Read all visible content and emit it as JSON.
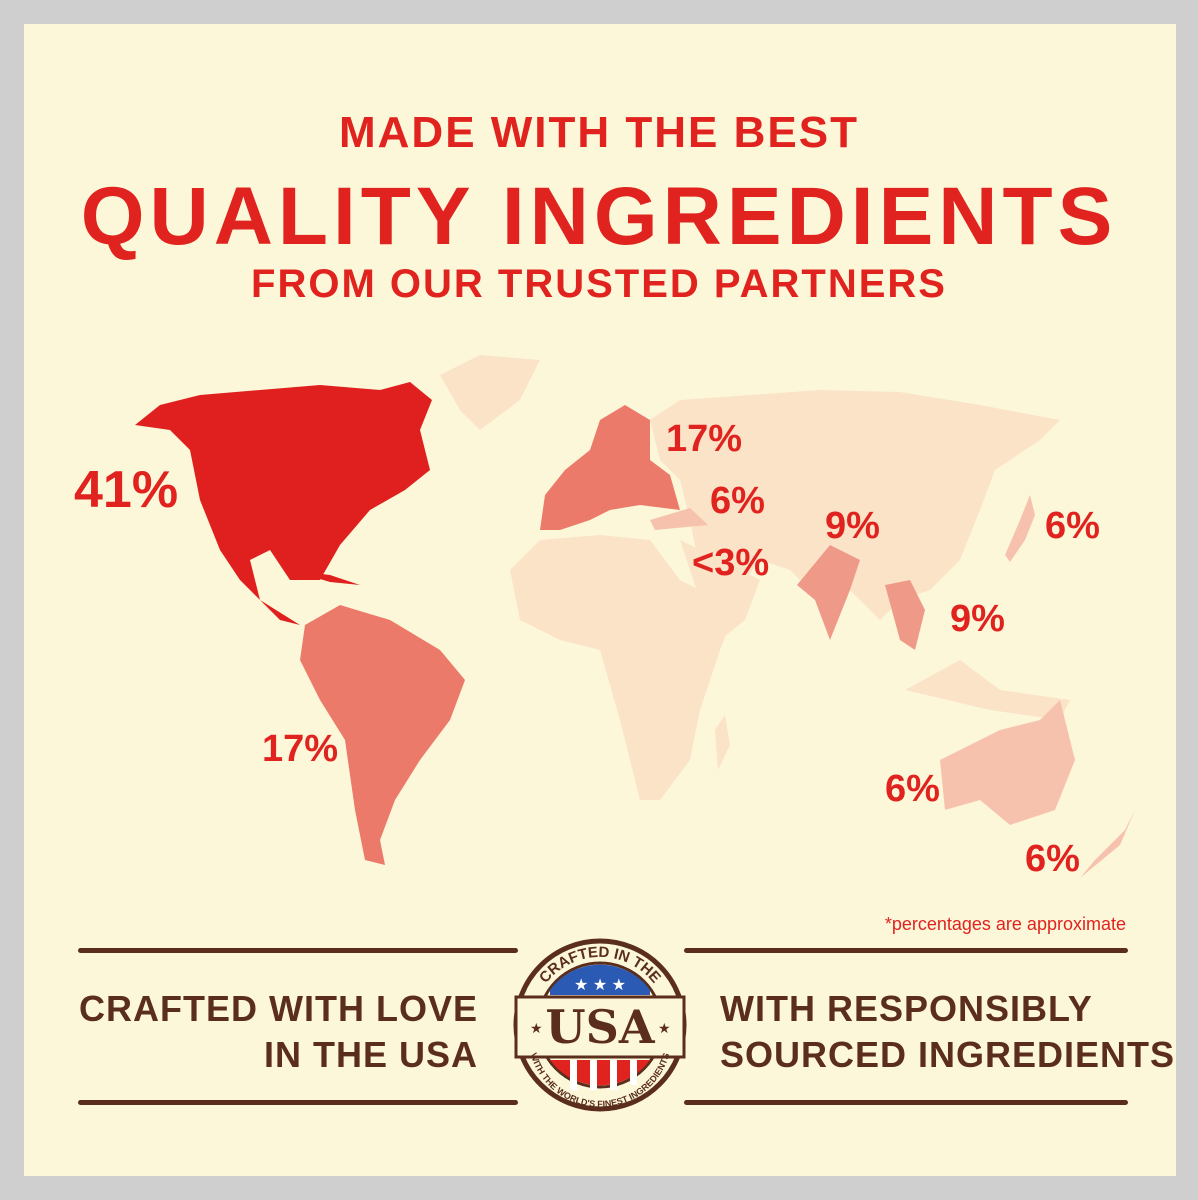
{
  "header": {
    "line1": "MADE WITH THE BEST",
    "line2": "QUALITY INGREDIENTS",
    "line3": "FROM OUR TRUSTED PARTNERS"
  },
  "regions": {
    "north_america": "41%",
    "south_america": "17%",
    "europe": "17%",
    "turkey": "6%",
    "middle_east": "<3%",
    "india": "9%",
    "southeast_asia": "9%",
    "japan": "6%",
    "australia": "6%",
    "new_zealand": "6%"
  },
  "colors": {
    "title": "#e0231f",
    "background": "#fdf7da",
    "land": "#fbe3c8",
    "high": "#e0201e",
    "medium": "#ec7a6a",
    "medium_low": "#ef9a88",
    "low": "#f6c2ae",
    "footer": "#5a2d1d"
  },
  "note": "*percentages are approximate",
  "footer": {
    "left_line1": "CRAFTED WITH LOVE",
    "left_line2": "IN THE USA",
    "right_line1": "WITH RESPONSIBLY",
    "right_line2": "SOURCED INGREDIENTS"
  },
  "badge": {
    "top": "CRAFTED IN THE",
    "center": "USA",
    "bottom": "WITH THE WORLD'S FINEST INGREDIENTS"
  }
}
